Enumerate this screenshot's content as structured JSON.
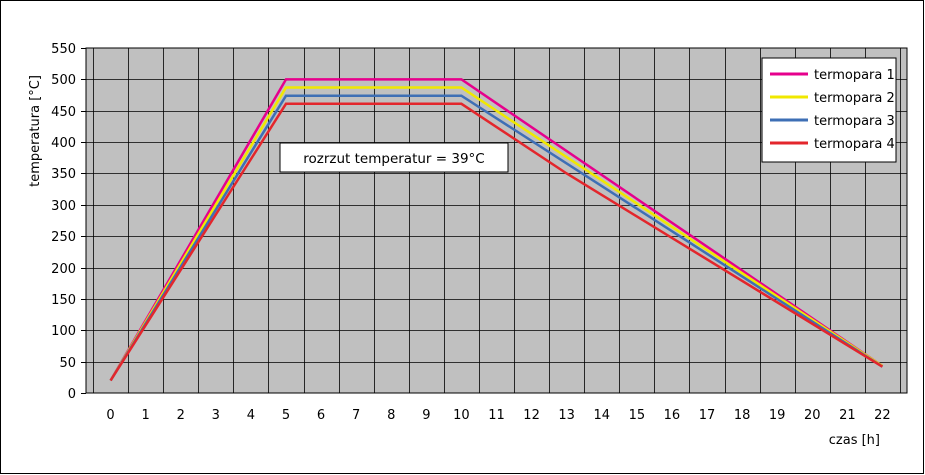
{
  "chart_data": {
    "type": "line",
    "xlabel": "czas [h]",
    "ylabel": "temperatura [°C]",
    "xlim": [
      -0.7,
      22.7
    ],
    "ylim": [
      0,
      550
    ],
    "x_ticks": [
      0,
      1,
      2,
      3,
      4,
      5,
      6,
      7,
      8,
      9,
      10,
      11,
      12,
      13,
      14,
      15,
      16,
      17,
      18,
      19,
      20,
      21,
      22
    ],
    "y_ticks": [
      0,
      50,
      100,
      150,
      200,
      250,
      300,
      350,
      400,
      450,
      500,
      550
    ],
    "grid": true,
    "legend_position": "top-right",
    "annotation": "rozrzut temperatur = 39°C",
    "series": [
      {
        "name": "termopara 1",
        "color": "#e6008c",
        "points": [
          [
            0,
            20
          ],
          [
            5,
            500
          ],
          [
            10,
            500
          ],
          [
            22,
            43
          ]
        ]
      },
      {
        "name": "termopara 2",
        "color": "#f0e800",
        "points": [
          [
            0,
            20
          ],
          [
            5,
            487
          ],
          [
            10,
            487
          ],
          [
            22,
            43
          ]
        ]
      },
      {
        "name": "termopara 3",
        "color": "#3e6fb5",
        "points": [
          [
            0,
            20
          ],
          [
            5,
            474
          ],
          [
            10,
            474
          ],
          [
            22,
            42
          ]
        ]
      },
      {
        "name": "termopara 4",
        "color": "#e3262c",
        "points": [
          [
            0,
            20
          ],
          [
            5,
            461
          ],
          [
            10,
            461
          ],
          [
            13,
            350
          ],
          [
            22,
            42
          ]
        ]
      }
    ]
  },
  "colors": {
    "plot_background": "#c0c0c0",
    "grid": "#000000",
    "frame": "#000000"
  }
}
